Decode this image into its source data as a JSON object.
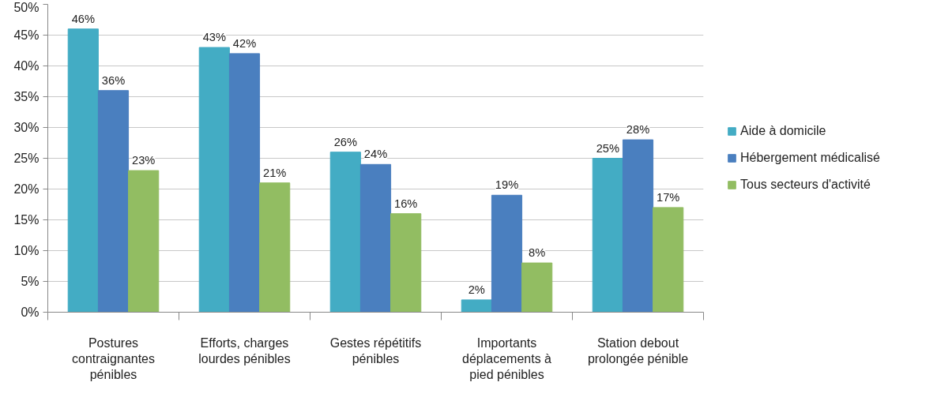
{
  "chart_data": {
    "type": "bar",
    "categories": [
      "Postures contraignantes pénibles",
      "Efforts, charges lourdes pénibles",
      "Gestes répétitifs pénibles",
      "Importants déplacements à pied pénibles",
      "Station debout prolongée pénible"
    ],
    "series": [
      {
        "name": "Aide à domicile",
        "color": "#43acc4",
        "values": [
          46,
          43,
          26,
          2,
          25
        ],
        "value_labels": [
          "46%",
          "43%",
          "26%",
          "2%",
          "25%"
        ]
      },
      {
        "name": "Hébergement médicalisé",
        "color": "#4a7fbf",
        "values": [
          36,
          42,
          24,
          19,
          28
        ],
        "value_labels": [
          "36%",
          "42%",
          "24%",
          "19%",
          "28%"
        ]
      },
      {
        "name": "Tous secteurs d'activité",
        "color": "#92bd62",
        "values": [
          23,
          21,
          16,
          8,
          17
        ],
        "value_labels": [
          "23%",
          "21%",
          "16%",
          "8%",
          "17%"
        ]
      }
    ],
    "ylim": [
      0,
      50
    ],
    "yticks": [
      {
        "value": 0,
        "label": "0%"
      },
      {
        "value": 5,
        "label": "5%"
      },
      {
        "value": 10,
        "label": "10%"
      },
      {
        "value": 15,
        "label": "15%"
      },
      {
        "value": 20,
        "label": "20%"
      },
      {
        "value": 25,
        "label": "25%"
      },
      {
        "value": 30,
        "label": "30%"
      },
      {
        "value": 35,
        "label": "35%"
      },
      {
        "value": 40,
        "label": "40%"
      },
      {
        "value": 45,
        "label": "45%"
      },
      {
        "value": 50,
        "label": "50%"
      }
    ],
    "grid": "y",
    "legend": "right"
  }
}
